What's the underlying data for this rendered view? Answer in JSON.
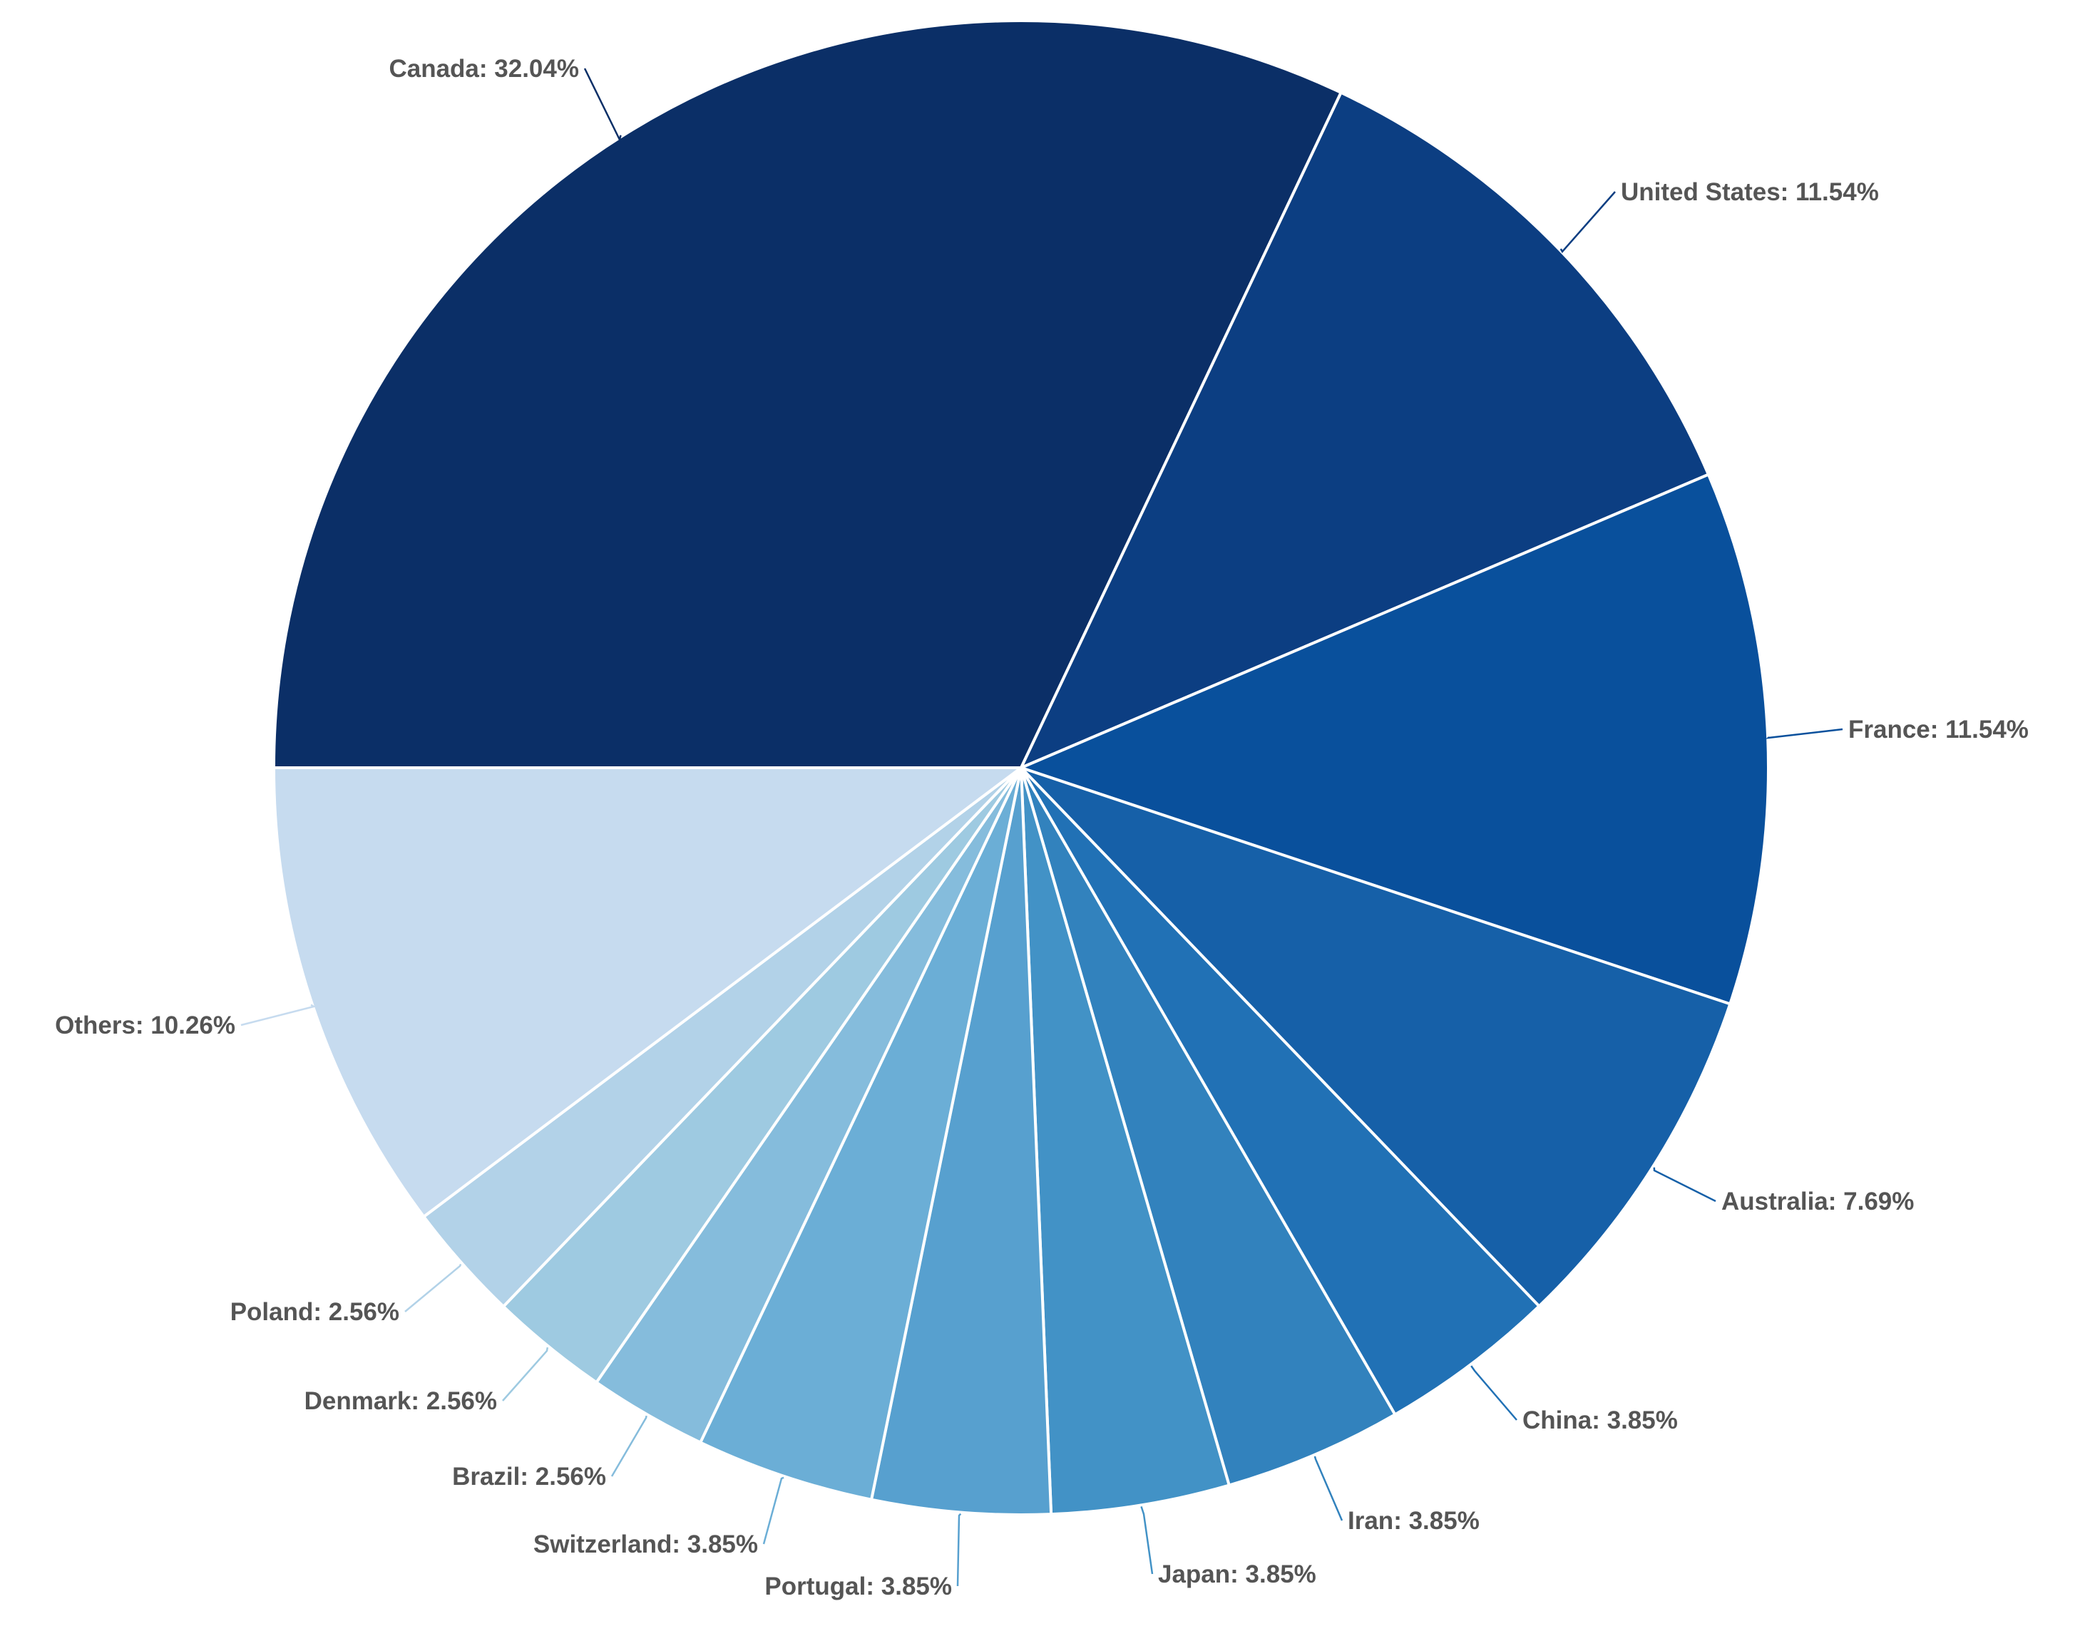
{
  "chart_data": {
    "type": "pie",
    "start_angle_deg": 180,
    "direction": "clockwise",
    "legend": "none",
    "slices": [
      {
        "label": "Canada: 32.04%",
        "name": "Canada",
        "value": 32.04,
        "color": "#0b2f67"
      },
      {
        "label": "United States: 11.54%",
        "name": "United States",
        "value": 11.54,
        "color": "#0c3e82"
      },
      {
        "label": "France: 11.54%",
        "name": "France",
        "value": 11.54,
        "color": "#09509c"
      },
      {
        "label": "Australia: 7.69%",
        "name": "Australia",
        "value": 7.69,
        "color": "#1660a8"
      },
      {
        "label": "China: 3.85%",
        "name": "China",
        "value": 3.85,
        "color": "#2171b5"
      },
      {
        "label": "Iran: 3.85%",
        "name": "Iran",
        "value": 3.85,
        "color": "#3282bd"
      },
      {
        "label": "Japan: 3.85%",
        "name": "Japan",
        "value": 3.85,
        "color": "#4292c6"
      },
      {
        "label": "Portugal: 3.85%",
        "name": "Portugal",
        "value": 3.85,
        "color": "#57a0cf"
      },
      {
        "label": "Switzerland: 3.85%",
        "name": "Switzerland",
        "value": 3.85,
        "color": "#6baed6"
      },
      {
        "label": "Brazil: 2.56%",
        "name": "Brazil",
        "value": 2.56,
        "color": "#85bcdc"
      },
      {
        "label": "Denmark: 2.56%",
        "name": "Denmark",
        "value": 2.56,
        "color": "#9ecae1"
      },
      {
        "label": "Poland: 2.56%",
        "name": "Poland",
        "value": 2.56,
        "color": "#b2d2e8"
      },
      {
        "label": "Others: 10.26%",
        "name": "Others",
        "value": 10.26,
        "color": "#c6dbef"
      }
    ]
  }
}
